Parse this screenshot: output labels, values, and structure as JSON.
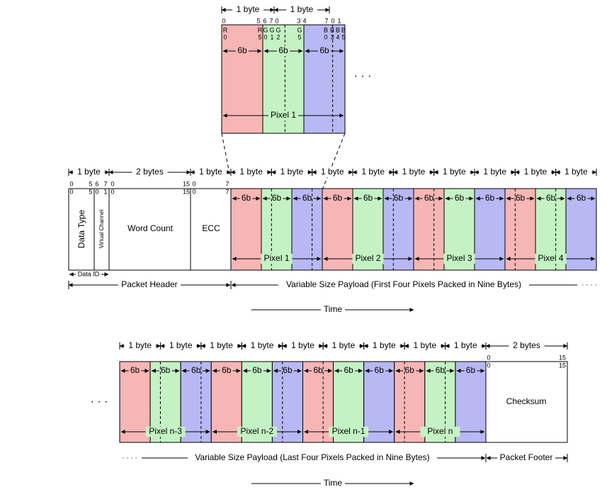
{
  "colors": {
    "red": "#f7b6b6",
    "green": "#c4f2c4",
    "blue": "#b8b8f4",
    "line": "#000000",
    "white": "#ffffff"
  },
  "labels": {
    "one_byte": "1 byte",
    "two_bytes": "2 bytes",
    "six_b": "6b",
    "ellipsis": "· · ·",
    "dots_small": "· · · ·",
    "data_type": "Data Type",
    "virtual_channel": "Virtual Channel",
    "word_count": "Word Count",
    "ecc": "ECC",
    "data_id": "Data ID",
    "packet_header": "Packet Header",
    "payload_first": "Variable Size Payload (First Four Pixels Packed in Nine Bytes)",
    "payload_last": "Variable Size Payload (Last Four Pixels Packed in Nine Bytes)",
    "packet_footer": "Packet Footer",
    "checksum": "Checksum",
    "time": "Time"
  },
  "bit_nums": {
    "zero": "0",
    "one": "1",
    "three": "3",
    "four": "4",
    "five": "5",
    "six": "6",
    "seven": "7",
    "fifteen": "15"
  },
  "detail_bits": [
    "R",
    "0",
    "R",
    "5",
    "G",
    "0",
    "G",
    "1",
    "G",
    "2",
    "G",
    "5",
    "B",
    "0",
    "B",
    "3",
    "B",
    "4",
    "B",
    "5"
  ],
  "pixels_first": [
    "Pixel 1",
    "Pixel 2",
    "Pixel 3",
    "Pixel 4"
  ],
  "pixels_last": [
    "Pixel n-3",
    "Pixel n-2",
    "Pixel n-1",
    "Pixel n"
  ],
  "detail_pixel": "Pixel 1"
}
